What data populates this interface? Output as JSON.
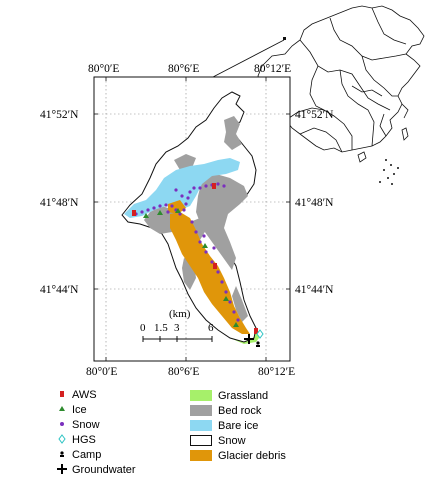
{
  "map": {
    "top_ticks": [
      "80°0′E",
      "80°6′E",
      "80°12′E"
    ],
    "bottom_ticks": [
      "80°0′E",
      "80°6′E",
      "80°12′E"
    ],
    "left_ticks": [
      "41°52′N",
      "41°48′N",
      "41°44′N"
    ],
    "right_ticks": [
      "41°52′N",
      "41°48′N",
      "41°44′N"
    ],
    "scale_unit": "(km)",
    "scale_values": [
      "0",
      "1.5",
      "3",
      "6"
    ]
  },
  "legend": {
    "points": [
      {
        "label": "AWS",
        "icon": "aws-icon",
        "color": "#d42020"
      },
      {
        "label": "Ice",
        "icon": "triangle-icon",
        "color": "#2e8b2e"
      },
      {
        "label": "Snow",
        "icon": "dot-icon",
        "color": "#7b2fbe"
      },
      {
        "label": "HGS",
        "icon": "diamond-icon",
        "color": "#2ec4c4"
      },
      {
        "label": "Camp",
        "icon": "camp-icon",
        "color": "#000000"
      },
      {
        "label": "Groundwater",
        "icon": "cross-icon",
        "color": "#000000"
      }
    ],
    "areas": [
      {
        "label": "Grassland",
        "color": "#a6f06a"
      },
      {
        "label": "Bed rock",
        "color": "#a0a0a0"
      },
      {
        "label": "Bare ice",
        "color": "#8dd8f2"
      },
      {
        "label": "Snow",
        "color": "#ffffff"
      },
      {
        "label": "Glacier debris",
        "color": "#e0960a"
      }
    ]
  }
}
